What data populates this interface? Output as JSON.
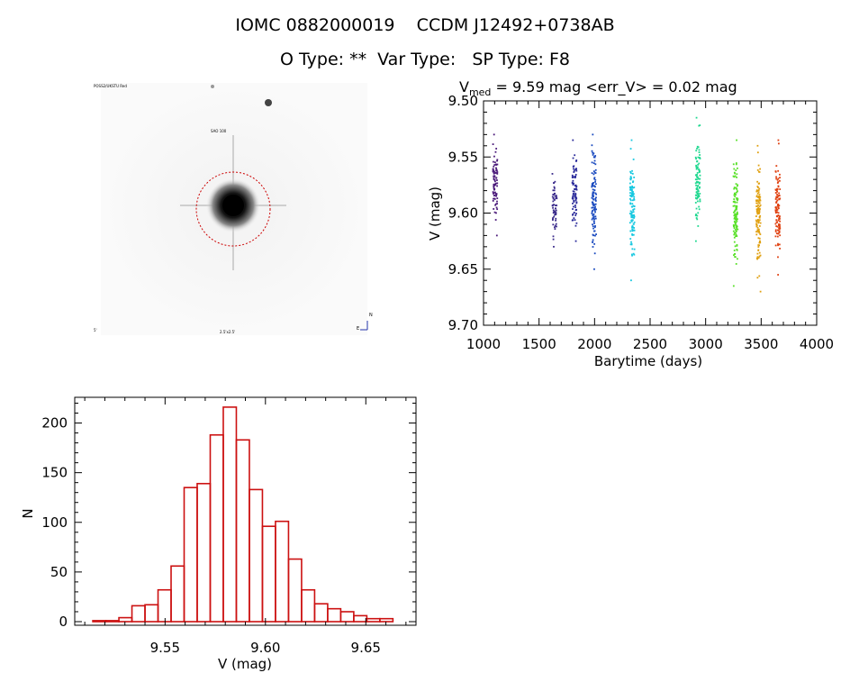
{
  "header": {
    "line1": "IOMC 0882000019    CCDM J12492+0738AB",
    "line2": "O Type: **  Var Type:   SP Type: F8"
  },
  "light_curve": {
    "title_prefix": "V",
    "title_sub": "med",
    "title_rest": " = 9.59 mag <err_V> = 0.02 mag",
    "xlabel": "Barytime (days)",
    "ylabel": "V (mag)"
  },
  "histogram": {
    "xlabel": "V (mag)",
    "ylabel": "N"
  },
  "image_panel": {
    "overlay_labels": [
      "POSS2/UKSTU Red",
      "SAO 100",
      "N",
      "E",
      "5'",
      "2.5'x2.5'"
    ]
  },
  "colors": {
    "hist": "#cc1111",
    "circle": "#cc0000"
  },
  "chart_data": [
    {
      "type": "scatter",
      "title": "Vmed = 9.59 mag <err_V> = 0.02 mag",
      "xlabel": "Barytime (days)",
      "ylabel": "V (mag)",
      "xlim": [
        1000,
        4000
      ],
      "ylim": [
        9.7,
        9.5
      ],
      "y_inverted": true,
      "xticks": [
        1000,
        1500,
        2000,
        2500,
        3000,
        3500,
        4000
      ],
      "yticks": [
        9.5,
        9.55,
        9.6,
        9.65,
        9.7
      ],
      "groups": [
        {
          "x": 1105,
          "ymin": 9.53,
          "ymax": 9.62,
          "color": "#4b1a7a"
        },
        {
          "x": 1640,
          "ymin": 9.565,
          "ymax": 9.63,
          "color": "#3a2a8a"
        },
        {
          "x": 1820,
          "ymin": 9.535,
          "ymax": 9.625,
          "color": "#2a2a9a"
        },
        {
          "x": 1995,
          "ymin": 9.53,
          "ymax": 9.65,
          "color": "#1a4abf"
        },
        {
          "x": 2340,
          "ymin": 9.535,
          "ymax": 9.66,
          "color": "#18c8e0"
        },
        {
          "x": 2930,
          "ymin": 9.515,
          "ymax": 9.625,
          "color": "#20d890"
        },
        {
          "x": 3270,
          "ymin": 9.535,
          "ymax": 9.665,
          "color": "#58e028"
        },
        {
          "x": 3475,
          "ymin": 9.54,
          "ymax": 9.67,
          "color": "#e0a010"
        },
        {
          "x": 3650,
          "ymin": 9.535,
          "ymax": 9.655,
          "color": "#e04010"
        }
      ]
    },
    {
      "type": "bar",
      "xlabel": "V (mag)",
      "ylabel": "N",
      "xlim": [
        9.505,
        9.675
      ],
      "ylim": [
        0,
        230
      ],
      "xticks": [
        "9.55",
        "9.60",
        "9.65"
      ],
      "yticks": [
        "0",
        "50",
        "100",
        "150",
        "200"
      ],
      "bin_start": 9.514,
      "bin_width": 0.0065,
      "values": [
        1,
        1,
        4,
        16,
        17,
        32,
        56,
        135,
        139,
        188,
        216,
        183,
        133,
        96,
        101,
        63,
        32,
        18,
        13,
        10,
        6,
        3,
        3
      ]
    }
  ]
}
